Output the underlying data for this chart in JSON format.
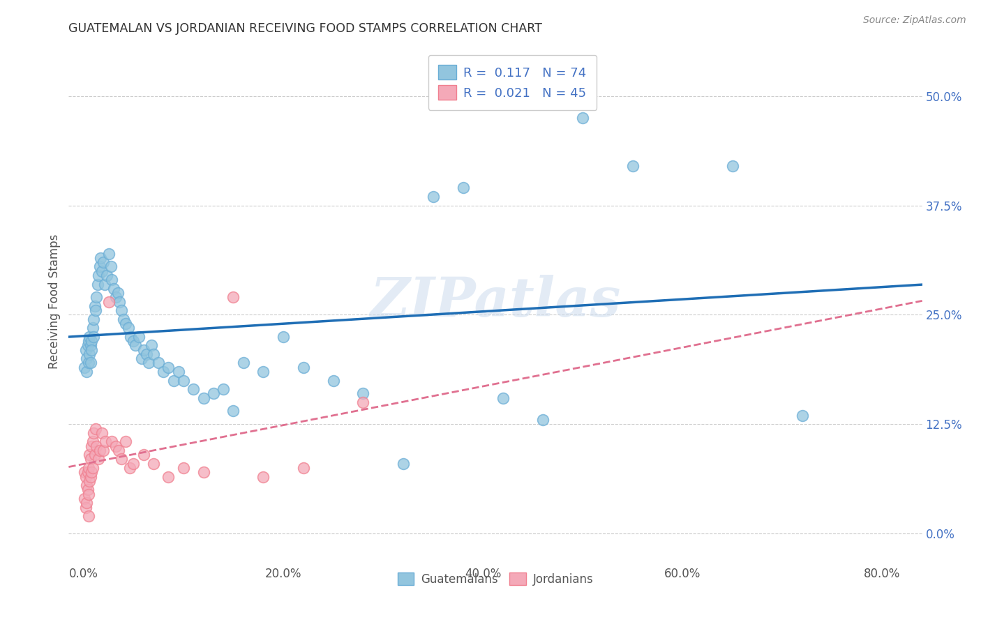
{
  "title": "GUATEMALAN VS JORDANIAN RECEIVING FOOD STAMPS CORRELATION CHART",
  "source": "Source: ZipAtlas.com",
  "ylabel": "Receiving Food Stamps",
  "xlabel_ticks": [
    "0.0%",
    "20.0%",
    "40.0%",
    "60.0%",
    "80.0%"
  ],
  "xlabel_vals": [
    0.0,
    0.2,
    0.4,
    0.6,
    0.8
  ],
  "ylabel_ticks": [
    "0.0%",
    "12.5%",
    "25.0%",
    "37.5%",
    "50.0%"
  ],
  "ylabel_vals": [
    0.0,
    0.125,
    0.25,
    0.375,
    0.5
  ],
  "xlim": [
    -0.015,
    0.84
  ],
  "ylim": [
    -0.03,
    0.56
  ],
  "guatemalan_color": "#92c5de",
  "jordanian_color": "#f4a9b8",
  "guatemalan_edge_color": "#6baed6",
  "jordanian_edge_color": "#f08090",
  "guatemalan_line_color": "#1f6eb5",
  "jordanian_line_color": "#e07090",
  "R_guatemalan": "0.117",
  "N_guatemalan": "74",
  "R_jordanian": "0.021",
  "N_jordanian": "45",
  "watermark_text": "ZIPatlas",
  "background_color": "#ffffff",
  "grid_color": "#cccccc",
  "guatemalan_x": [
    0.001,
    0.002,
    0.003,
    0.003,
    0.004,
    0.005,
    0.005,
    0.006,
    0.006,
    0.007,
    0.007,
    0.008,
    0.008,
    0.009,
    0.01,
    0.01,
    0.011,
    0.012,
    0.013,
    0.014,
    0.015,
    0.016,
    0.017,
    0.018,
    0.02,
    0.021,
    0.023,
    0.025,
    0.027,
    0.028,
    0.03,
    0.032,
    0.034,
    0.036,
    0.038,
    0.04,
    0.042,
    0.045,
    0.047,
    0.05,
    0.052,
    0.055,
    0.058,
    0.06,
    0.063,
    0.065,
    0.068,
    0.07,
    0.075,
    0.08,
    0.085,
    0.09,
    0.095,
    0.1,
    0.11,
    0.12,
    0.13,
    0.14,
    0.15,
    0.16,
    0.18,
    0.2,
    0.22,
    0.25,
    0.28,
    0.32,
    0.35,
    0.38,
    0.42,
    0.46,
    0.5,
    0.55,
    0.65,
    0.72
  ],
  "guatemalan_y": [
    0.19,
    0.21,
    0.2,
    0.185,
    0.215,
    0.22,
    0.195,
    0.225,
    0.205,
    0.215,
    0.195,
    0.22,
    0.21,
    0.235,
    0.245,
    0.225,
    0.26,
    0.255,
    0.27,
    0.285,
    0.295,
    0.305,
    0.315,
    0.3,
    0.31,
    0.285,
    0.295,
    0.32,
    0.305,
    0.29,
    0.28,
    0.27,
    0.275,
    0.265,
    0.255,
    0.245,
    0.24,
    0.235,
    0.225,
    0.22,
    0.215,
    0.225,
    0.2,
    0.21,
    0.205,
    0.195,
    0.215,
    0.205,
    0.195,
    0.185,
    0.19,
    0.175,
    0.185,
    0.175,
    0.165,
    0.155,
    0.16,
    0.165,
    0.14,
    0.195,
    0.185,
    0.225,
    0.19,
    0.175,
    0.16,
    0.08,
    0.385,
    0.395,
    0.155,
    0.13,
    0.475,
    0.42,
    0.42,
    0.135
  ],
  "jordanian_x": [
    0.001,
    0.001,
    0.002,
    0.002,
    0.003,
    0.003,
    0.004,
    0.004,
    0.005,
    0.005,
    0.005,
    0.006,
    0.006,
    0.007,
    0.007,
    0.008,
    0.008,
    0.009,
    0.009,
    0.01,
    0.011,
    0.012,
    0.013,
    0.015,
    0.016,
    0.018,
    0.02,
    0.022,
    0.025,
    0.028,
    0.032,
    0.035,
    0.038,
    0.042,
    0.046,
    0.05,
    0.06,
    0.07,
    0.085,
    0.1,
    0.12,
    0.15,
    0.18,
    0.22,
    0.28
  ],
  "jordanian_y": [
    0.07,
    0.04,
    0.065,
    0.03,
    0.055,
    0.035,
    0.07,
    0.05,
    0.075,
    0.045,
    0.02,
    0.09,
    0.06,
    0.085,
    0.065,
    0.1,
    0.07,
    0.105,
    0.075,
    0.115,
    0.09,
    0.12,
    0.1,
    0.085,
    0.095,
    0.115,
    0.095,
    0.105,
    0.265,
    0.105,
    0.1,
    0.095,
    0.085,
    0.105,
    0.075,
    0.08,
    0.09,
    0.08,
    0.065,
    0.075,
    0.07,
    0.27,
    0.065,
    0.075,
    0.15
  ]
}
